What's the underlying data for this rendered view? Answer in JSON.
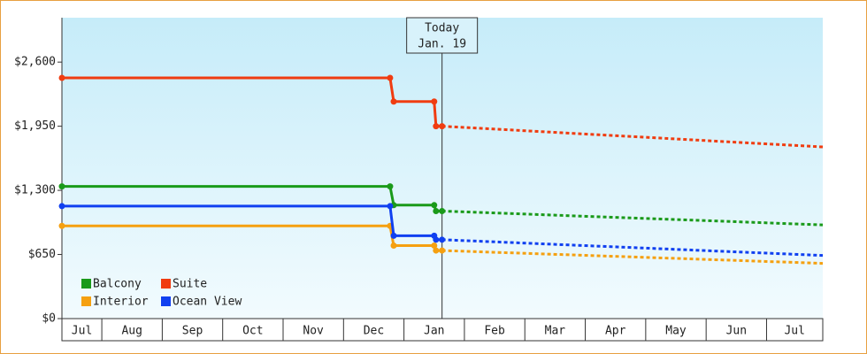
{
  "chart_data": {
    "type": "line",
    "xlim": [
      0.34,
      12.93
    ],
    "ylim": [
      0,
      3050
    ],
    "xticks": [
      {
        "value": 0,
        "label": "Jul"
      },
      {
        "value": 1,
        "label": "Aug"
      },
      {
        "value": 2,
        "label": "Sep"
      },
      {
        "value": 3,
        "label": "Oct"
      },
      {
        "value": 4,
        "label": "Nov"
      },
      {
        "value": 5,
        "label": "Dec"
      },
      {
        "value": 6,
        "label": "Jan"
      },
      {
        "value": 7,
        "label": "Feb"
      },
      {
        "value": 8,
        "label": "Mar"
      },
      {
        "value": 9,
        "label": "Apr"
      },
      {
        "value": 10,
        "label": "May"
      },
      {
        "value": 11,
        "label": "Jun"
      },
      {
        "value": 12,
        "label": "Jul"
      }
    ],
    "yticks": [
      {
        "value": 0,
        "label": "$0"
      },
      {
        "value": 650,
        "label": "$650"
      },
      {
        "value": 1300,
        "label": "$1,300"
      },
      {
        "value": 1950,
        "label": "$1,950"
      },
      {
        "value": 2600,
        "label": "$2,600"
      }
    ],
    "today": {
      "x": 6.63,
      "label": [
        "Today",
        "Jan. 19"
      ]
    },
    "legend": "lower-left",
    "series": [
      {
        "name": "Balcony",
        "color": "#1a9a1a",
        "x": [
          0.34,
          5.77,
          5.83,
          6.5,
          6.53,
          6.63
        ],
        "values": [
          1340,
          1340,
          1150,
          1150,
          1090,
          1090
        ],
        "forecast": {
          "x": [
            6.63,
            12.93
          ],
          "values": [
            1090,
            950
          ]
        }
      },
      {
        "name": "Suite",
        "color": "#f03c10",
        "x": [
          0.34,
          5.77,
          5.83,
          6.5,
          6.53,
          6.63
        ],
        "values": [
          2440,
          2440,
          2200,
          2200,
          1950,
          1950
        ],
        "forecast": {
          "x": [
            6.63,
            12.93
          ],
          "values": [
            1950,
            1740
          ]
        }
      },
      {
        "name": "Interior",
        "color": "#f5a010",
        "x": [
          0.34,
          5.77,
          5.83,
          6.5,
          6.53,
          6.63
        ],
        "values": [
          940,
          940,
          740,
          740,
          690,
          690
        ],
        "forecast": {
          "x": [
            6.63,
            12.93
          ],
          "values": [
            690,
            560
          ]
        }
      },
      {
        "name": "Ocean View",
        "color": "#1040f0",
        "x": [
          0.34,
          5.77,
          5.83,
          6.5,
          6.53,
          6.63
        ],
        "values": [
          1140,
          1140,
          840,
          840,
          800,
          800
        ],
        "forecast": {
          "x": [
            6.63,
            12.93
          ],
          "values": [
            800,
            640
          ]
        }
      }
    ]
  }
}
